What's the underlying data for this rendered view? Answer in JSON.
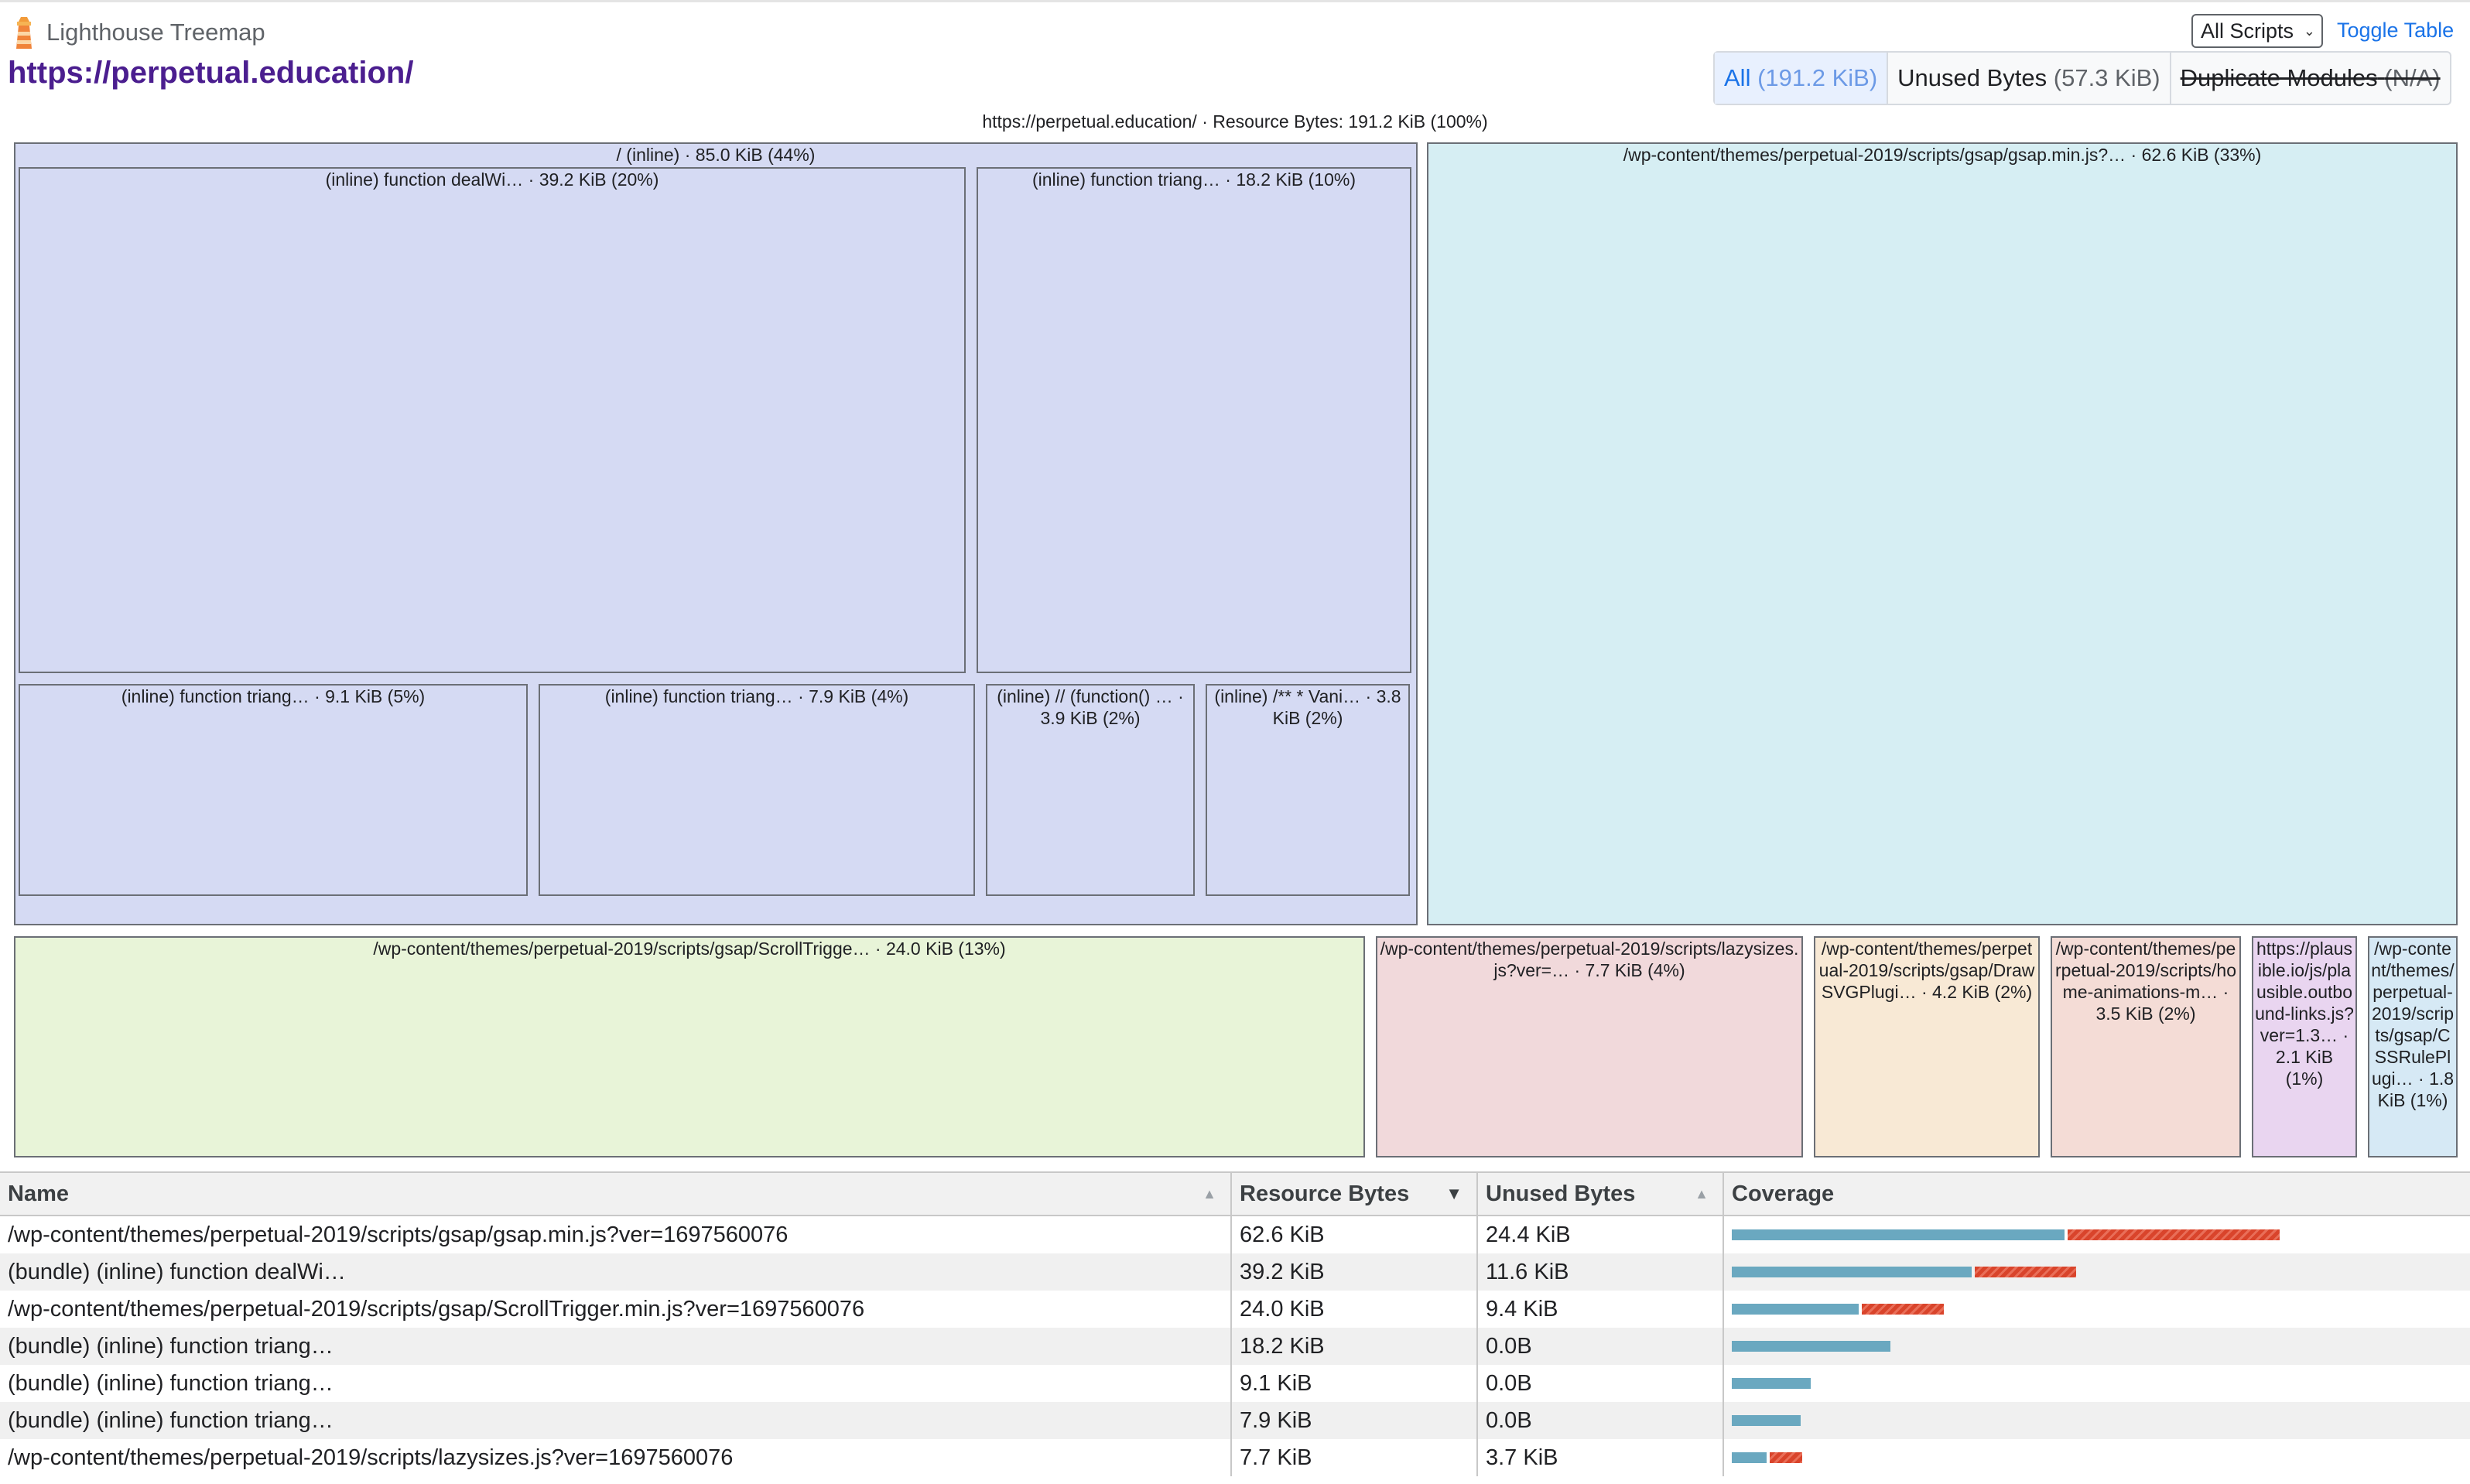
{
  "app": {
    "title": "Lighthouse Treemap",
    "page_url": "https://perpetual.education/"
  },
  "controls": {
    "scripts_select": "All Scripts",
    "toggle_table": "Toggle Table",
    "view_modes": [
      {
        "label": "All",
        "size": "(191.2 KiB)"
      },
      {
        "label": "Unused Bytes",
        "size": "(57.3 KiB)"
      },
      {
        "label": "Duplicate Modules",
        "size": "(N/A)"
      }
    ]
  },
  "treemap": {
    "root": "https://perpetual.education/ · Resource Bytes: 191.2 KiB (100%)",
    "inline_group": "/ (inline) · 85.0 KiB (44%)",
    "inline_children": [
      "(inline) function dealWi… · 39.2 KiB (20%)",
      "(inline) function triang… · 18.2 KiB (10%)",
      "(inline) function triang… · 9.1 KiB (5%)",
      "(inline) function triang… · 7.9 KiB (4%)",
      "(inline) // (function() … · 3.9 KiB (2%)",
      "(inline) /** * Vani… · 3.8 KiB (2%)"
    ],
    "gsap": "/wp-content/themes/perpetual-2019/scripts/gsap/gsap.min.js?… · 62.6 KiB (33%)",
    "scrolltrigger": "/wp-content/themes/perpetual-2019/scripts/gsap/ScrollTrigge… · 24.0 KiB (13%)",
    "lazysizes": "/wp-content/themes/perpetual-2019/scripts/lazysizes.js?ver=… · 7.7 KiB (4%)",
    "drawsvg": "/wp-content/themes/perpetual-2019/scripts/gsap/DrawSVGPlugi… · 4.2 KiB (2%)",
    "home_animations": "/wp-content/themes/perpetual-2019/scripts/home-animations-m… · 3.5 KiB (2%)",
    "plausible": "https://plausible.io/js/plausible.outbound-links.js?ver=1.3… · 2.1 KiB (1%)",
    "cssrule": "/wp-content/themes/perpetual-2019/scripts/gsap/CSSRulePlugi… · 1.8 KiB (1%)"
  },
  "table": {
    "headers": {
      "name": "Name",
      "resource_bytes": "Resource Bytes",
      "unused_bytes": "Unused Bytes",
      "coverage": "Coverage"
    },
    "rows": [
      {
        "name": "/wp-content/themes/perpetual-2019/scripts/gsap/gsap.min.js?ver=1697560076",
        "resource": "62.6 KiB",
        "unused": "24.4 KiB",
        "resource_kib": 62.6,
        "unused_kib": 24.4
      },
      {
        "name": "(bundle) (inline) function dealWi…",
        "resource": "39.2 KiB",
        "unused": "11.6 KiB",
        "resource_kib": 39.2,
        "unused_kib": 11.6
      },
      {
        "name": "/wp-content/themes/perpetual-2019/scripts/gsap/ScrollTrigger.min.js?ver=1697560076",
        "resource": "24.0 KiB",
        "unused": "9.4 KiB",
        "resource_kib": 24.0,
        "unused_kib": 9.4
      },
      {
        "name": "(bundle) (inline) function triang…",
        "resource": "18.2 KiB",
        "unused": "0.0B",
        "resource_kib": 18.2,
        "unused_kib": 0
      },
      {
        "name": "(bundle) (inline) function triang…",
        "resource": "9.1 KiB",
        "unused": "0.0B",
        "resource_kib": 9.1,
        "unused_kib": 0
      },
      {
        "name": "(bundle) (inline) function triang…",
        "resource": "7.9 KiB",
        "unused": "0.0B",
        "resource_kib": 7.9,
        "unused_kib": 0
      },
      {
        "name": "/wp-content/themes/perpetual-2019/scripts/lazysizes.js?ver=1697560076",
        "resource": "7.7 KiB",
        "unused": "3.7 KiB",
        "resource_kib": 7.7,
        "unused_kib": 3.7
      }
    ]
  },
  "colors": {
    "used": "#6aa8c0",
    "unused": "#d9442b",
    "url": "#4b1e8f",
    "link": "#1a73e8"
  }
}
